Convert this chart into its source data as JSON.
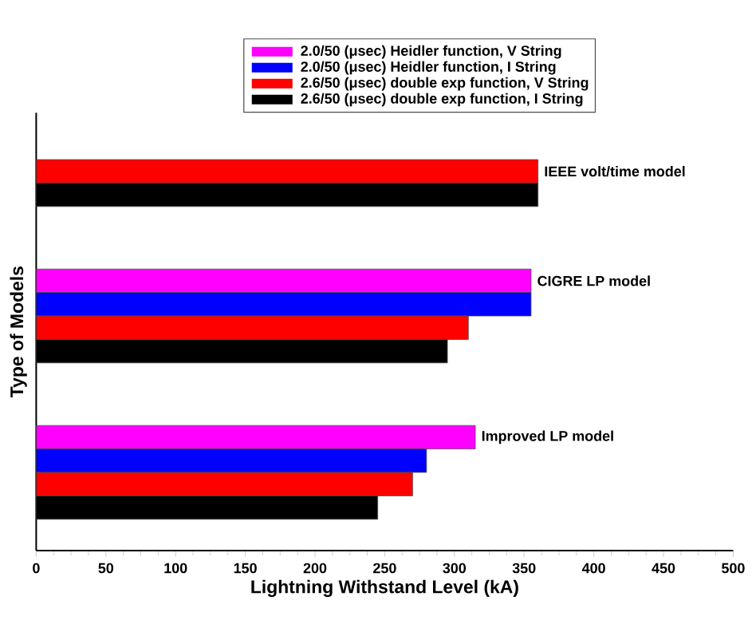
{
  "chart_data": {
    "type": "bar",
    "orientation": "horizontal",
    "xlabel": "Lightning Withstand Level (kA)",
    "ylabel": "Type of Models",
    "categories": [
      "IEEE volt/time model",
      "CIGRE LP model",
      "Improved LP model"
    ],
    "series": [
      {
        "name": "2.0/50 (μsec) Heidler function, V String",
        "color": "#ff00ff",
        "values": [
          null,
          355,
          315
        ]
      },
      {
        "name": "2.0/50 (μsec) Heidler function, I String",
        "color": "#0000ff",
        "values": [
          null,
          355,
          280
        ]
      },
      {
        "name": "2.6/50 (μsec) double exp function, V String",
        "color": "#ff0000",
        "values": [
          360,
          310,
          270
        ]
      },
      {
        "name": "2.6/50 (μsec) double exp function, I String",
        "color": "#000000",
        "values": [
          360,
          295,
          245
        ]
      }
    ],
    "xlim": [
      0,
      500
    ],
    "xticks": [
      0,
      50,
      100,
      150,
      200,
      250,
      300,
      350,
      400,
      450,
      500
    ],
    "legend": "top",
    "tick_labels": "x"
  }
}
